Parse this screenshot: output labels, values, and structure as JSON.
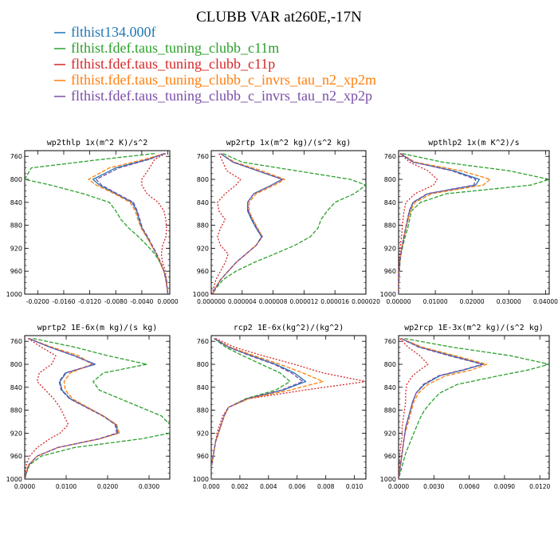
{
  "title": "CLUBB VAR at260E,-17N",
  "legend": [
    {
      "name": "flthist134.000f",
      "color": "#1f77b4"
    },
    {
      "name": "flthist.fdef.taus_tuning_clubb_c11m",
      "color": "#2ca02c"
    },
    {
      "name": "flthist.fdef.taus_tuning_clubb_c11p",
      "color": "#d62728"
    },
    {
      "name": "flthist.fdef.taus_tuning_clubb_c_invrs_tau_n2_xp2m",
      "color": "#ff7f0e"
    },
    {
      "name": "flthist.fdef.taus_tuning_clubb_c_invrs_tau_n2_xp2p",
      "color": "#7b4ea8"
    }
  ],
  "chart_data": [
    {
      "type": "line",
      "title": "wp2thlp   1x(m^2 K)/s^2",
      "xlim": [
        -0.022,
        0.0003
      ],
      "ylim": [
        1000,
        750
      ],
      "xticks": [
        -0.02,
        -0.016,
        -0.012,
        -0.008,
        -0.004,
        0.0
      ],
      "xticklabels": [
        "-0.0200",
        "-0.0160",
        "-0.0120",
        "-0.0080",
        "-0.0040",
        "0.0000"
      ],
      "yticks": [
        760,
        800,
        840,
        880,
        920,
        960,
        1000
      ],
      "y": [
        755,
        765,
        780,
        800,
        810,
        825,
        840,
        855,
        870,
        885,
        900,
        915,
        930,
        945,
        960,
        975,
        990,
        1000
      ],
      "series": [
        {
          "name": "flthist134.000f",
          "values": [
            -0.0005,
            -0.003,
            -0.008,
            -0.0115,
            -0.0105,
            -0.008,
            -0.0055,
            -0.0048,
            -0.0044,
            -0.004,
            -0.0032,
            -0.0025,
            -0.0018,
            -0.0012,
            -0.0006,
            -0.0003,
            -0.0001,
            0.0
          ]
        },
        {
          "name": "flthist.fdef.taus_tuning_clubb_c11m",
          "values": [
            -0.002,
            -0.01,
            -0.021,
            -0.022,
            -0.018,
            -0.013,
            -0.009,
            -0.008,
            -0.0072,
            -0.006,
            -0.0045,
            -0.0032,
            -0.002,
            -0.0012,
            -0.0006,
            -0.0002,
            -0.0001,
            0.0
          ]
        },
        {
          "name": "flthist.fdef.taus_tuning_clubb_c11p",
          "values": [
            -0.0003,
            -0.002,
            -0.0028,
            -0.004,
            -0.004,
            -0.0032,
            -0.0015,
            -0.0006,
            -0.0003,
            -0.0002,
            -0.0003,
            -0.0008,
            -0.001,
            -0.0008,
            -0.0004,
            -0.0002,
            -0.0001,
            0.0
          ]
        },
        {
          "name": "flthist.fdef.taus_tuning_clubb_c_invrs_tau_n2_xp2m",
          "values": [
            -0.0005,
            -0.0035,
            -0.009,
            -0.0122,
            -0.011,
            -0.0082,
            -0.0058,
            -0.005,
            -0.0046,
            -0.0041,
            -0.0033,
            -0.0025,
            -0.0018,
            -0.0012,
            -0.0006,
            -0.0003,
            -0.0001,
            0.0
          ]
        },
        {
          "name": "flthist.fdef.taus_tuning_clubb_c_invrs_tau_n2_xp2p",
          "values": [
            -0.0005,
            -0.0028,
            -0.0075,
            -0.011,
            -0.0102,
            -0.0078,
            -0.0053,
            -0.0047,
            -0.0043,
            -0.0039,
            -0.0031,
            -0.0024,
            -0.0017,
            -0.0011,
            -0.0006,
            -0.0003,
            -0.0001,
            0.0
          ]
        }
      ]
    },
    {
      "type": "line",
      "title": "wp2rtp   1x(m^2 kg)/(s^2 kg)",
      "xlim": [
        0.0,
        2e-05
      ],
      "ylim": [
        1000,
        750
      ],
      "xticks": [
        0.0,
        4e-06,
        8e-06,
        1.2e-05,
        1.6e-05,
        2e-05
      ],
      "xticklabels": [
        "0.000000",
        "0.000004",
        "0.000008",
        "0.000012",
        "0.000016",
        "0.000020"
      ],
      "yticks": [
        760,
        800,
        840,
        880,
        920,
        960,
        1000
      ],
      "y": [
        755,
        770,
        785,
        800,
        810,
        825,
        840,
        855,
        870,
        885,
        900,
        915,
        930,
        945,
        960,
        975,
        990,
        1000
      ],
      "series": [
        {
          "name": "flthist134.000f",
          "values": [
            1.2e-06,
            2.8e-06,
            6e-06,
            9.2e-06,
            7.8e-06,
            5.5e-06,
            4.7e-06,
            4.7e-06,
            5.2e-06,
            5.8e-06,
            6.5e-06,
            5.8e-06,
            4.5e-06,
            3.2e-06,
            2.2e-06,
            1.2e-06,
            5e-07,
            2e-07
          ]
        },
        {
          "name": "flthist.fdef.taus_tuning_clubb_c11m",
          "values": [
            1.5e-06,
            4e-06,
            1.1e-05,
            1.8e-05,
            2e-05,
            1.85e-05,
            1.6e-05,
            1.5e-05,
            1.42e-05,
            1.38e-05,
            1.28e-05,
            1.08e-05,
            8.2e-06,
            5.5e-06,
            3.2e-06,
            1.5e-06,
            6e-07,
            2e-07
          ]
        },
        {
          "name": "flthist.fdef.taus_tuning_clubb_c11p",
          "values": [
            1e-06,
            1.5e-06,
            2e-06,
            3.8e-06,
            3.2e-06,
            1.8e-06,
            8e-07,
            1e-06,
            1.8e-06,
            1.2e-06,
            8e-07,
            1.2e-06,
            2.2e-06,
            1.8e-06,
            1.2e-06,
            6e-07,
            3e-07,
            1e-07
          ]
        },
        {
          "name": "flthist.fdef.taus_tuning_clubb_c_invrs_tau_n2_xp2m",
          "values": [
            1.2e-06,
            3e-06,
            6.5e-06,
            9.5e-06,
            8.2e-06,
            5.8e-06,
            4.9e-06,
            4.9e-06,
            5.4e-06,
            6e-06,
            6.6e-06,
            5.8e-06,
            4.5e-06,
            3.2e-06,
            2.2e-06,
            1.2e-06,
            5e-07,
            2e-07
          ]
        },
        {
          "name": "flthist.fdef.taus_tuning_clubb_c_invrs_tau_n2_xp2p",
          "values": [
            1.2e-06,
            2.8e-06,
            6e-06,
            9.2e-06,
            7.8e-06,
            5.5e-06,
            4.7e-06,
            4.8e-06,
            5.3e-06,
            5.9e-06,
            6.6e-06,
            5.8e-06,
            4.5e-06,
            3.2e-06,
            2.2e-06,
            1.2e-06,
            5e-07,
            2e-07
          ]
        }
      ]
    },
    {
      "type": "line",
      "title": "wpthlp2   1x(m K^2)/s",
      "xlim": [
        0.0,
        0.041
      ],
      "ylim": [
        1000,
        750
      ],
      "xticks": [
        0.0,
        0.01,
        0.02,
        0.03,
        0.04
      ],
      "xticklabels": [
        "0.00000",
        "0.01000",
        "0.02000",
        "0.03000",
        "0.04000"
      ],
      "yticks": [
        760,
        800,
        840,
        880,
        920,
        960,
        1000
      ],
      "y": [
        755,
        770,
        785,
        800,
        810,
        825,
        840,
        855,
        870,
        885,
        900,
        915,
        930,
        945,
        960,
        975,
        990,
        1000
      ],
      "series": [
        {
          "name": "flthist134.000f",
          "values": [
            0.0005,
            0.004,
            0.015,
            0.022,
            0.021,
            0.008,
            0.004,
            0.003,
            0.0025,
            0.002,
            0.0015,
            0.001,
            0.0006,
            0.0003,
            0.0002,
            0.0001,
            0.0,
            0.0
          ]
        },
        {
          "name": "flthist.fdef.taus_tuning_clubb_c11m",
          "values": [
            0.001,
            0.012,
            0.03,
            0.041,
            0.036,
            0.013,
            0.006,
            0.0035,
            0.003,
            0.0025,
            0.0018,
            0.0012,
            0.0007,
            0.0004,
            0.0002,
            0.0001,
            0.0,
            0.0
          ]
        },
        {
          "name": "flthist.fdef.taus_tuning_clubb_c11p",
          "values": [
            0.0004,
            0.003,
            0.008,
            0.0105,
            0.0095,
            0.0045,
            0.002,
            0.0015,
            0.0012,
            0.001,
            0.0008,
            0.0005,
            0.0003,
            0.0002,
            0.0001,
            0.0,
            0.0,
            0.0
          ]
        },
        {
          "name": "flthist.fdef.taus_tuning_clubb_c_invrs_tau_n2_xp2m",
          "values": [
            0.0005,
            0.0045,
            0.017,
            0.025,
            0.023,
            0.009,
            0.0045,
            0.0032,
            0.0026,
            0.002,
            0.0015,
            0.001,
            0.0006,
            0.0003,
            0.0002,
            0.0001,
            0.0,
            0.0
          ]
        },
        {
          "name": "flthist.fdef.taus_tuning_clubb_c_invrs_tau_n2_xp2p",
          "values": [
            0.0005,
            0.004,
            0.0145,
            0.021,
            0.0205,
            0.0078,
            0.0039,
            0.0029,
            0.0024,
            0.0019,
            0.0014,
            0.001,
            0.0006,
            0.0003,
            0.0002,
            0.0001,
            0.0,
            0.0
          ]
        }
      ]
    },
    {
      "type": "line",
      "title": "wprtp2   1E-6x(m kg)/(s kg)",
      "xlim": [
        0.0,
        0.035
      ],
      "ylim": [
        1000,
        750
      ],
      "xticks": [
        0.0,
        0.01,
        0.02,
        0.03
      ],
      "xticklabels": [
        "0.0000",
        "0.0100",
        "0.0200",
        "0.0300"
      ],
      "yticks": [
        760,
        800,
        840,
        880,
        920,
        960,
        1000
      ],
      "y": [
        755,
        770,
        785,
        800,
        815,
        830,
        845,
        860,
        875,
        890,
        905,
        920,
        930,
        945,
        960,
        975,
        990,
        1000
      ],
      "series": [
        {
          "name": "flthist134.000f",
          "values": [
            0.001,
            0.006,
            0.012,
            0.017,
            0.01,
            0.0085,
            0.009,
            0.011,
            0.015,
            0.019,
            0.022,
            0.0225,
            0.018,
            0.008,
            0.003,
            0.001,
            0.0003,
            0.0001
          ]
        },
        {
          "name": "flthist.fdef.taus_tuning_clubb_c11m",
          "values": [
            0.002,
            0.012,
            0.02,
            0.0295,
            0.019,
            0.0165,
            0.018,
            0.023,
            0.028,
            0.033,
            0.035,
            0.035,
            0.028,
            0.012,
            0.004,
            0.0012,
            0.0004,
            0.0001
          ]
        },
        {
          "name": "flthist.fdef.taus_tuning_clubb_c11p",
          "values": [
            0.0008,
            0.004,
            0.0075,
            0.0065,
            0.0035,
            0.003,
            0.005,
            0.007,
            0.0085,
            0.0095,
            0.0105,
            0.0085,
            0.006,
            0.003,
            0.0012,
            0.0004,
            0.0001,
            0.0
          ]
        },
        {
          "name": "flthist.fdef.taus_tuning_clubb_c_invrs_tau_n2_xp2m",
          "values": [
            0.001,
            0.0065,
            0.013,
            0.0162,
            0.011,
            0.0095,
            0.0098,
            0.0115,
            0.0152,
            0.019,
            0.0222,
            0.0228,
            0.018,
            0.008,
            0.003,
            0.001,
            0.0003,
            0.0001
          ]
        },
        {
          "name": "flthist.fdef.taus_tuning_clubb_c_invrs_tau_n2_xp2p",
          "values": [
            0.001,
            0.006,
            0.0118,
            0.0168,
            0.0098,
            0.0083,
            0.0088,
            0.0108,
            0.0148,
            0.0188,
            0.0218,
            0.0222,
            0.0178,
            0.008,
            0.003,
            0.001,
            0.0003,
            0.0001
          ]
        }
      ]
    },
    {
      "type": "line",
      "title": "rcp2   1E-6x(kg^2)/(kg^2)",
      "xlim": [
        0.0,
        0.0108
      ],
      "ylim": [
        1000,
        750
      ],
      "xticks": [
        0.0,
        0.002,
        0.004,
        0.006,
        0.008,
        0.01
      ],
      "xticklabels": [
        "0.000",
        "0.002",
        "0.004",
        "0.006",
        "0.008",
        "0.010"
      ],
      "yticks": [
        760,
        800,
        840,
        880,
        920,
        960,
        1000
      ],
      "y": [
        755,
        770,
        785,
        800,
        815,
        830,
        845,
        860,
        875,
        890,
        905,
        920,
        935,
        950,
        965,
        980,
        1000
      ],
      "series": [
        {
          "name": "flthist134.000f",
          "values": [
            0.0002,
            0.0012,
            0.0028,
            0.0045,
            0.0058,
            0.0066,
            0.005,
            0.0025,
            0.0012,
            0.0009,
            0.0007,
            0.0005,
            0.0003,
            0.0002,
            0.0001,
            0.0,
            0.0
          ]
        },
        {
          "name": "flthist.fdef.taus_tuning_clubb_c11m",
          "values": [
            0.0002,
            0.001,
            0.0022,
            0.0035,
            0.0048,
            0.0055,
            0.0045,
            0.0024,
            0.0012,
            0.0009,
            0.0007,
            0.0005,
            0.0003,
            0.0002,
            0.0001,
            0.0,
            0.0
          ]
        },
        {
          "name": "flthist.fdef.taus_tuning_clubb_c11p",
          "values": [
            0.0003,
            0.0016,
            0.0036,
            0.0058,
            0.0078,
            0.0108,
            0.0065,
            0.0026,
            0.0012,
            0.0008,
            0.0006,
            0.0004,
            0.0003,
            0.0002,
            0.0001,
            0.0,
            0.0
          ]
        },
        {
          "name": "flthist.fdef.taus_tuning_clubb_c_invrs_tau_n2_xp2m",
          "values": [
            0.0002,
            0.0013,
            0.003,
            0.0048,
            0.0064,
            0.0078,
            0.0055,
            0.0026,
            0.0012,
            0.0009,
            0.0007,
            0.0005,
            0.0003,
            0.0002,
            0.0001,
            0.0,
            0.0
          ]
        },
        {
          "name": "flthist.fdef.taus_tuning_clubb_c_invrs_tau_n2_xp2p",
          "values": [
            0.0002,
            0.0012,
            0.0027,
            0.0044,
            0.0056,
            0.0064,
            0.0049,
            0.0025,
            0.0012,
            0.0009,
            0.0007,
            0.0005,
            0.0003,
            0.0002,
            0.0001,
            0.0,
            0.0
          ]
        }
      ]
    },
    {
      "type": "line",
      "title": "wp2rcp   1E-3x(m^2 kg)/(s^2 kg)",
      "xlim": [
        0.0,
        0.0128
      ],
      "ylim": [
        1000,
        750
      ],
      "xticks": [
        0.0,
        0.003,
        0.006,
        0.009,
        0.012
      ],
      "xticklabels": [
        "0.0000",
        "0.0030",
        "0.0060",
        "0.0090",
        "0.0120"
      ],
      "yticks": [
        760,
        800,
        840,
        880,
        920,
        960,
        1000
      ],
      "y": [
        755,
        770,
        785,
        800,
        810,
        820,
        835,
        850,
        865,
        880,
        895,
        910,
        925,
        940,
        955,
        970,
        985,
        1000
      ],
      "series": [
        {
          "name": "flthist134.000f",
          "values": [
            0.0002,
            0.0018,
            0.0045,
            0.0072,
            0.0055,
            0.0035,
            0.0022,
            0.0015,
            0.0012,
            0.001,
            0.0008,
            0.0006,
            0.0005,
            0.0004,
            0.0003,
            0.0002,
            0.0001,
            0.0
          ]
        },
        {
          "name": "flthist.fdef.taus_tuning_clubb_c11m",
          "values": [
            0.0005,
            0.0045,
            0.0095,
            0.0128,
            0.011,
            0.0085,
            0.005,
            0.0035,
            0.0028,
            0.0022,
            0.0018,
            0.0015,
            0.0012,
            0.0009,
            0.0006,
            0.0004,
            0.0002,
            0.0
          ]
        },
        {
          "name": "flthist.fdef.taus_tuning_clubb_c11p",
          "values": [
            0.0001,
            0.0008,
            0.0018,
            0.0025,
            0.0018,
            0.0012,
            0.0007,
            0.0006,
            0.0006,
            0.0005,
            0.0004,
            0.0003,
            0.0003,
            0.0002,
            0.0001,
            0.0001,
            0.0,
            0.0
          ]
        },
        {
          "name": "flthist.fdef.taus_tuning_clubb_c_invrs_tau_n2_xp2m",
          "values": [
            0.0002,
            0.002,
            0.0048,
            0.0075,
            0.0062,
            0.004,
            0.0025,
            0.0017,
            0.0013,
            0.0011,
            0.0009,
            0.0007,
            0.0005,
            0.0004,
            0.0003,
            0.0002,
            0.0001,
            0.0
          ]
        },
        {
          "name": "flthist.fdef.taus_tuning_clubb_c_invrs_tau_n2_xp2p",
          "values": [
            0.0002,
            0.0017,
            0.0043,
            0.0071,
            0.0054,
            0.0034,
            0.0021,
            0.0015,
            0.0012,
            0.001,
            0.0008,
            0.0006,
            0.0005,
            0.0004,
            0.0003,
            0.0002,
            0.0001,
            0.0
          ]
        }
      ]
    }
  ]
}
